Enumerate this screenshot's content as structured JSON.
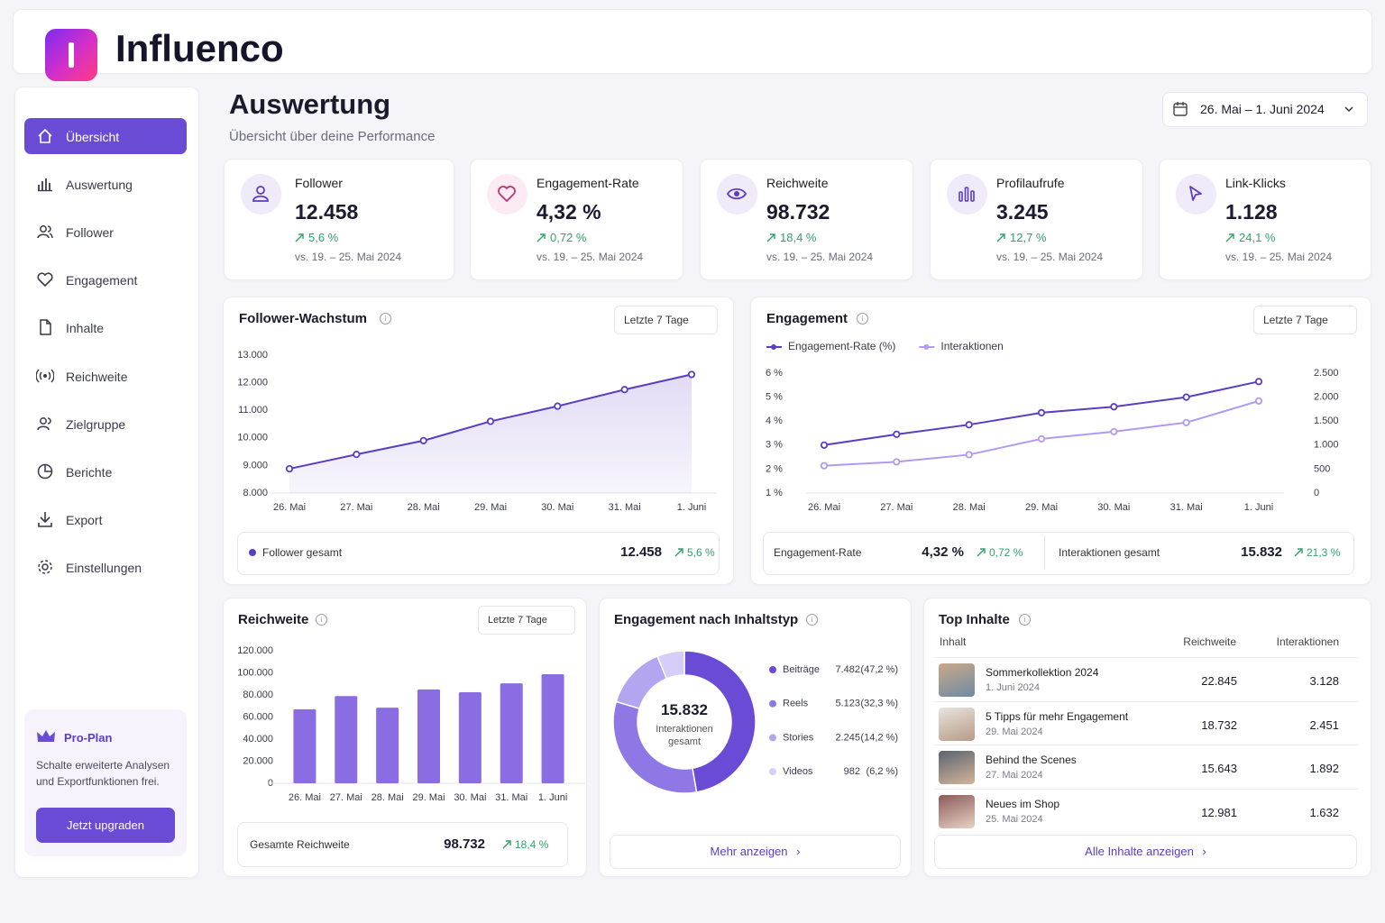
{
  "header": {
    "brand": "Influenco"
  },
  "sidebar": {
    "nav": [
      "Übersicht",
      "Auswertung",
      "Follower",
      "Engagement",
      "Inhalte",
      "Reichweite",
      "Zielgruppe",
      "Berichte",
      "Export",
      "Einstellungen"
    ],
    "promo": {
      "title": "Pro-Plan",
      "text": "Schalte erweiterte Analysen und Exportfunktionen frei.",
      "button": "Jetzt upgraden"
    }
  },
  "page": {
    "title": "Auswertung",
    "subtitle": "Übersicht über deine Performance",
    "date_range": "26. Mai – 1. Juni 2024"
  },
  "kpis": [
    {
      "label": "Follower",
      "value": "12.458",
      "change": "5,6 %",
      "compare": "vs. 19. – 25. Mai 2024"
    },
    {
      "label": "Engagement-Rate",
      "value": "4,32 %",
      "change": "0,72 %",
      "compare": "vs. 19. – 25. Mai 2024"
    },
    {
      "label": "Reichweite",
      "value": "98.732",
      "change": "18,4 %",
      "compare": "vs. 19. – 25. Mai 2024"
    },
    {
      "label": "Profilaufrufe",
      "value": "3.245",
      "change": "12,7 %",
      "compare": "vs. 19. – 25. Mai 2024"
    },
    {
      "label": "Link-Klicks",
      "value": "1.128",
      "change": "24,1 %",
      "compare": "vs. 19. – 25. Mai 2024"
    }
  ],
  "chart_data": [
    {
      "type": "line",
      "title": "Follower-Wachstum",
      "period": "Letzte 7 Tage",
      "categories": [
        "26. Mai",
        "27. Mai",
        "28. Mai",
        "29. Mai",
        "30. Mai",
        "31. Mai",
        "1. Juni"
      ],
      "values": [
        8880,
        9400,
        9900,
        10600,
        11150,
        11750,
        12300
      ],
      "color": "#5b3cc4",
      "area": true,
      "ylim": [
        8000,
        13000
      ],
      "yticks": [
        {
          "value": 8000,
          "label": "8.000"
        },
        {
          "value": 9000,
          "label": "9.000"
        },
        {
          "value": 10000,
          "label": "10.000"
        },
        {
          "value": 11000,
          "label": "11.000"
        },
        {
          "value": 12000,
          "label": "12.000"
        },
        {
          "value": 13000,
          "label": "13.000"
        }
      ],
      "grid": false,
      "summary": [
        {
          "label": "Follower gesamt",
          "value": "12.458",
          "change": "5,6 %"
        }
      ]
    },
    {
      "type": "line",
      "title": "Engagement",
      "period": "Letzte 7 Tage",
      "categories": [
        "26. Mai",
        "27. Mai",
        "28. Mai",
        "29. Mai",
        "30. Mai",
        "31. Mai",
        "1. Juni"
      ],
      "series": [
        {
          "name": "Engagement-Rate (%)",
          "color": "#5b3cc4",
          "values": [
            3.0,
            3.45,
            3.85,
            4.35,
            4.6,
            5.0,
            5.65
          ]
        },
        {
          "name": "Interaktionen",
          "color": "#b39af0",
          "axis": "y2",
          "values": [
            570,
            650,
            800,
            1130,
            1280,
            1470,
            1920
          ]
        }
      ],
      "ylim": [
        1,
        6
      ],
      "yticks": [
        {
          "value": 1,
          "label": "1 %"
        },
        {
          "value": 2,
          "label": "2 %"
        },
        {
          "value": 3,
          "label": "3 %"
        },
        {
          "value": 4,
          "label": "4 %"
        },
        {
          "value": 5,
          "label": "5 %"
        },
        {
          "value": 6,
          "label": "6 %"
        }
      ],
      "y2lim": [
        0,
        2500
      ],
      "y2ticks": [
        0,
        500,
        {
          "value": 1000,
          "label": "1.000"
        },
        {
          "value": 1500,
          "label": "1.500"
        },
        {
          "value": 2000,
          "label": "2.000"
        },
        {
          "value": 2500,
          "label": "2.500"
        }
      ],
      "grid": false,
      "summary": [
        {
          "label": "Engagement-Rate",
          "value": "4,32 %",
          "change": "0,72 %"
        },
        {
          "label": "Interaktionen gesamt",
          "value": "15.832",
          "change": "21,3 %"
        }
      ]
    },
    {
      "type": "bar",
      "title": "Reichweite",
      "period": "Letzte 7 Tage",
      "categories": [
        "26. Mai",
        "27. Mai",
        "28. Mai",
        "29. Mai",
        "30. Mai",
        "31. Mai",
        "1. Juni"
      ],
      "values": [
        67000,
        79000,
        68500,
        85000,
        82500,
        90500,
        98800
      ],
      "color": "#8a6de3",
      "ylim": [
        0,
        120000
      ],
      "yticks": [
        0,
        {
          "value": 20000,
          "label": "20.000"
        },
        {
          "value": 40000,
          "label": "40.000"
        },
        {
          "value": 60000,
          "label": "60.000"
        },
        {
          "value": 80000,
          "label": "80.000"
        },
        {
          "value": 100000,
          "label": "100.000"
        },
        {
          "value": 120000,
          "label": "120.000"
        }
      ],
      "grid": false,
      "summary": [
        {
          "label": "Gesamte Reichweite",
          "value": "98.732",
          "change": "18,4 %"
        }
      ]
    },
    {
      "type": "donut",
      "title": "Engagement nach Inhaltstyp",
      "categories": [
        "Beiträge",
        "Reels",
        "Stories",
        "Videos"
      ],
      "values": [
        7482,
        5123,
        2245,
        982
      ],
      "value_labels": [
        "7.482",
        "5.123",
        "2.245",
        "982"
      ],
      "shares": [
        47.2,
        32.3,
        14.2,
        6.2
      ],
      "share_labels": [
        "(47,2 %)",
        "(32,3 %)",
        "(14,2 %)",
        "(6,2 %)"
      ],
      "colors": [
        "#6a4bd6",
        "#8f78e6",
        "#b3a5f0",
        "#d6cdf8"
      ],
      "total": "15.832",
      "total_label": "Interaktionen gesamt",
      "link": "Mehr anzeigen"
    }
  ],
  "top_content": {
    "title": "Top Inhalte",
    "columns": [
      "Inhalt",
      "Reichweite",
      "Interaktionen"
    ],
    "rows": [
      {
        "title": "Sommerkollektion 2024",
        "date": "1. Juni 2024",
        "reach": "22.845",
        "interactions": "3.128"
      },
      {
        "title": "5 Tipps für mehr Engagement",
        "date": "29. Mai 2024",
        "reach": "18.732",
        "interactions": "2.451"
      },
      {
        "title": "Behind the Scenes",
        "date": "27. Mai 2024",
        "reach": "15.643",
        "interactions": "1.892"
      },
      {
        "title": "Neues im Shop",
        "date": "25. Mai 2024",
        "reach": "12.981",
        "interactions": "1.632"
      }
    ],
    "link": "Alle Inhalte anzeigen"
  }
}
